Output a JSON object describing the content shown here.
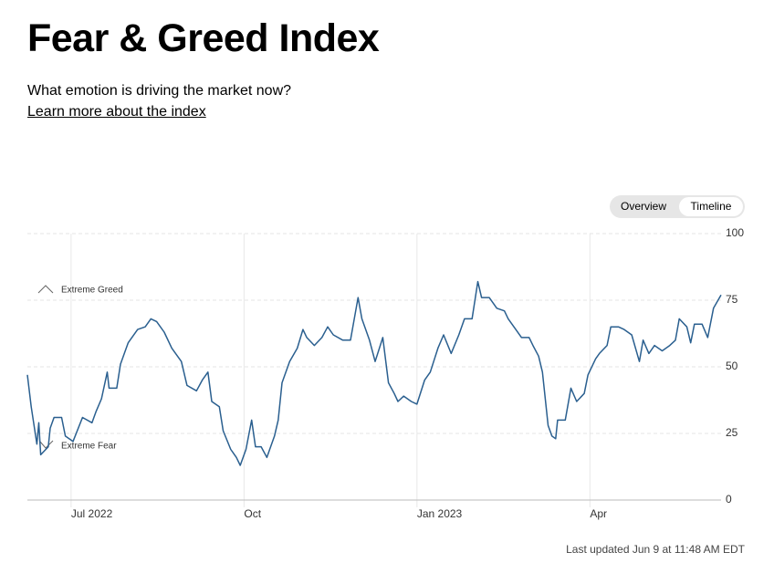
{
  "header": {
    "title": "Fear & Greed Index",
    "subtitle": "What emotion is driving the market now?",
    "link": "Learn more about the index"
  },
  "toggle": [
    "Overview",
    "Timeline"
  ],
  "chart_data": {
    "type": "line",
    "annotations": [
      "Extreme Greed",
      "Extreme Fear"
    ],
    "x": [
      0,
      2,
      5,
      6,
      7,
      11,
      12,
      14,
      18,
      20,
      24,
      29,
      34,
      36,
      39,
      42,
      43,
      47,
      49,
      53,
      58,
      62,
      65,
      68,
      72,
      76,
      81,
      84,
      89,
      92,
      95,
      97,
      101,
      103,
      107,
      110,
      112,
      115,
      118,
      120,
      123,
      126,
      130,
      132,
      134,
      138,
      142,
      145,
      147,
      151,
      155,
      158,
      161,
      166,
      170,
      174,
      176,
      180,
      183,
      187,
      190,
      193,
      195,
      198,
      202,
      205,
      209,
      212,
      216,
      219,
      223,
      227,
      230,
      234,
      237,
      239,
      243,
      247,
      251,
      253,
      257,
      260,
      264,
      266,
      269,
      271,
      274,
      276,
      278,
      279,
      283,
      286,
      289,
      293,
      295,
      299,
      301,
      305,
      307,
      311,
      314,
      318,
      322,
      324,
      327,
      330,
      334,
      338,
      341,
      343,
      347,
      349,
      351,
      355,
      358,
      361,
      365
    ],
    "series": [
      {
        "name": "Fear & Greed",
        "color": "#2a5f8f",
        "values": [
          47,
          35,
          21,
          29,
          17,
          20,
          27,
          31,
          31,
          24,
          22,
          31,
          29,
          33,
          38,
          48,
          42,
          42,
          51,
          59,
          64,
          65,
          68,
          67,
          63,
          57,
          52,
          43,
          41,
          45,
          48,
          37,
          35,
          26,
          19,
          16,
          13,
          19,
          30,
          20,
          20,
          16,
          24,
          30,
          44,
          52,
          57,
          64,
          61,
          58,
          61,
          65,
          62,
          60,
          60,
          76,
          68,
          60,
          52,
          61,
          44,
          40,
          37,
          39,
          37,
          36,
          45,
          48,
          57,
          62,
          55,
          62,
          68,
          68,
          82,
          76,
          76,
          72,
          71,
          68,
          64,
          61,
          61,
          58,
          54,
          48,
          28,
          24,
          23,
          30,
          30,
          42,
          37,
          40,
          47,
          53,
          55,
          58,
          65,
          65,
          64,
          62,
          52,
          60,
          55,
          58,
          56,
          58,
          60,
          68,
          65,
          59,
          66,
          66,
          61,
          72,
          77
        ]
      }
    ],
    "xlim": [
      0,
      365
    ],
    "xticks": [
      {
        "value": 23,
        "label": "Jul 2022"
      },
      {
        "value": 114,
        "label": "Oct"
      },
      {
        "value": 205,
        "label": "Jan 2023"
      },
      {
        "value": 296,
        "label": "Apr"
      }
    ],
    "ylim": [
      0,
      100
    ],
    "yticks": [
      0,
      25,
      50,
      75,
      100
    ],
    "grid": true
  },
  "footer": {
    "updated": "Last updated Jun 9 at 11:48 AM EDT"
  }
}
